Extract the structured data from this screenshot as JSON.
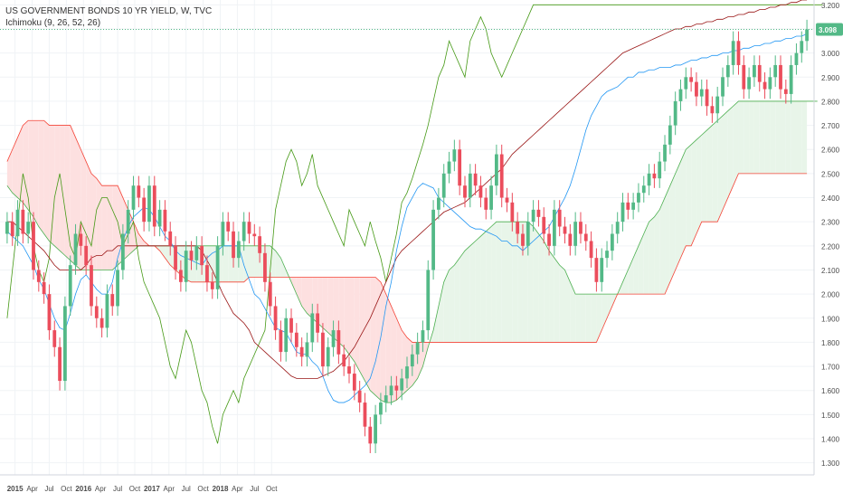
{
  "legend": {
    "title": "US GOVERNMENT BONDS 10 YR YIELD, W, TVC",
    "indicator": "Ichimoku (9, 26, 52, 26)"
  },
  "colors": {
    "up": "#53b987",
    "down": "#eb4d5c",
    "tenkan": "#2196f3",
    "kijun": "#991515",
    "chikou": "#459915",
    "span_a": "#4caf50",
    "span_b": "#f44336",
    "cloud_up_fill": "#e8f5e9",
    "cloud_down_fill": "#fde0e0",
    "price_line": "#53b987"
  },
  "chart_data": {
    "type": "candlestick",
    "ylim": [
      1.25,
      3.22
    ],
    "y_ticks": [
      "1.300",
      "1.400",
      "1.500",
      "1.600",
      "1.700",
      "1.800",
      "1.900",
      "2.000",
      "2.100",
      "2.200",
      "2.300",
      "2.400",
      "2.500",
      "2.600",
      "2.700",
      "2.800",
      "2.900",
      "3.000",
      "3.100",
      "3.200"
    ],
    "x_ticks": [
      "2015",
      "Apr",
      "Jul",
      "Oct",
      "2016",
      "Apr",
      "Jul",
      "Oct",
      "2017",
      "Apr",
      "Jul",
      "Oct",
      "2018",
      "Apr",
      "Jul",
      "Oct"
    ],
    "last_price_label": "3.098",
    "last_price": 3.098,
    "close": [
      2.3,
      2.24,
      2.35,
      2.25,
      2.3,
      2.1,
      2.05,
      2.0,
      1.85,
      1.78,
      1.64,
      1.95,
      2.12,
      2.25,
      2.2,
      2.12,
      1.95,
      1.9,
      1.86,
      2.0,
      1.95,
      2.1,
      2.25,
      2.35,
      2.45,
      2.4,
      2.3,
      2.45,
      2.28,
      2.35,
      2.26,
      2.2,
      2.1,
      2.05,
      2.18,
      2.14,
      2.2,
      2.12,
      2.05,
      2.02,
      2.2,
      2.3,
      2.26,
      2.15,
      2.22,
      2.3,
      2.25,
      2.24,
      2.17,
      2.05,
      1.95,
      1.85,
      1.76,
      1.9,
      1.84,
      1.78,
      1.74,
      1.8,
      1.92,
      1.84,
      1.7,
      1.78,
      1.85,
      1.75,
      1.7,
      1.67,
      1.6,
      1.55,
      1.45,
      1.38,
      1.5,
      1.55,
      1.58,
      1.62,
      1.6,
      1.65,
      1.7,
      1.75,
      1.8,
      1.85,
      2.1,
      2.35,
      2.4,
      2.5,
      2.55,
      2.6,
      2.45,
      2.4,
      2.5,
      2.45,
      2.4,
      2.35,
      2.45,
      2.58,
      2.4,
      2.38,
      2.3,
      2.25,
      2.2,
      2.3,
      2.35,
      2.32,
      2.25,
      2.2,
      2.35,
      2.28,
      2.25,
      2.2,
      2.3,
      2.25,
      2.22,
      2.15,
      2.05,
      2.15,
      2.18,
      2.25,
      2.3,
      2.38,
      2.35,
      2.38,
      2.42,
      2.45,
      2.5,
      2.48,
      2.55,
      2.62,
      2.7,
      2.8,
      2.85,
      2.9,
      2.88,
      2.82,
      2.85,
      2.78,
      2.75,
      2.82,
      2.9,
      2.95,
      3.05,
      2.95,
      2.85,
      2.9,
      2.95,
      2.88,
      2.85,
      2.9,
      2.95,
      2.85,
      2.83,
      2.95,
      3.0,
      3.05,
      3.098
    ],
    "tenkan": [
      2.26,
      2.24,
      2.22,
      2.2,
      2.16,
      2.12,
      2.06,
      2.02,
      1.96,
      1.9,
      1.86,
      1.85,
      1.92,
      2.0,
      2.06,
      2.08,
      2.05,
      2.02,
      2.0,
      2.0,
      2.05,
      2.15,
      2.22,
      2.28,
      2.32,
      2.34,
      2.36,
      2.35,
      2.32,
      2.28,
      2.24,
      2.22,
      2.18,
      2.16,
      2.15,
      2.14,
      2.13,
      2.12,
      2.15,
      2.17,
      2.18,
      2.2,
      2.2,
      2.2,
      2.2,
      2.12,
      2.06,
      2.0,
      1.98,
      1.94,
      1.9,
      1.86,
      1.85,
      1.84,
      1.8,
      1.76,
      1.75,
      1.75,
      1.72,
      1.7,
      1.66,
      1.6,
      1.56,
      1.55,
      1.55,
      1.56,
      1.58,
      1.6,
      1.62,
      1.65,
      1.72,
      1.82,
      1.95,
      2.05,
      2.18,
      2.28,
      2.36,
      2.4,
      2.44,
      2.46,
      2.45,
      2.44,
      2.4,
      2.38,
      2.36,
      2.34,
      2.32,
      2.3,
      2.28,
      2.27,
      2.27,
      2.26,
      2.25,
      2.24,
      2.22,
      2.22,
      2.2,
      2.2,
      2.18,
      2.2,
      2.22,
      2.24,
      2.26,
      2.28,
      2.32,
      2.36,
      2.4,
      2.45,
      2.52,
      2.6,
      2.68,
      2.74,
      2.78,
      2.82,
      2.84,
      2.85,
      2.86,
      2.88,
      2.9,
      2.9,
      2.92,
      2.92,
      2.93,
      2.93,
      2.94,
      2.94,
      2.94,
      2.95,
      2.95,
      2.96,
      2.97,
      2.97,
      2.98,
      2.98,
      2.99,
      2.99,
      3.0,
      3.0,
      3.01,
      3.01,
      3.02,
      3.02,
      3.03,
      3.03,
      3.04,
      3.04,
      3.05,
      3.05,
      3.06,
      3.06,
      3.07,
      3.07,
      3.08
    ],
    "kijun": [
      2.3,
      2.3,
      2.28,
      2.26,
      2.24,
      2.22,
      2.2,
      2.18,
      2.15,
      2.12,
      2.1,
      2.1,
      2.1,
      2.1,
      2.1,
      2.12,
      2.15,
      2.16,
      2.16,
      2.18,
      2.18,
      2.2,
      2.2,
      2.2,
      2.2,
      2.2,
      2.2,
      2.2,
      2.2,
      2.2,
      2.2,
      2.2,
      2.2,
      2.2,
      2.2,
      2.2,
      2.2,
      2.18,
      2.14,
      2.1,
      2.05,
      2.0,
      1.96,
      1.92,
      1.9,
      1.88,
      1.85,
      1.8,
      1.78,
      1.76,
      1.74,
      1.72,
      1.7,
      1.68,
      1.66,
      1.65,
      1.65,
      1.65,
      1.65,
      1.65,
      1.66,
      1.67,
      1.68,
      1.7,
      1.72,
      1.75,
      1.78,
      1.82,
      1.86,
      1.9,
      1.95,
      2.0,
      2.05,
      2.1,
      2.15,
      2.18,
      2.2,
      2.22,
      2.24,
      2.26,
      2.28,
      2.3,
      2.32,
      2.34,
      2.35,
      2.36,
      2.37,
      2.38,
      2.4,
      2.42,
      2.44,
      2.46,
      2.48,
      2.5,
      2.52,
      2.55,
      2.58,
      2.6,
      2.62,
      2.64,
      2.66,
      2.68,
      2.7,
      2.72,
      2.74,
      2.76,
      2.78,
      2.8,
      2.82,
      2.84,
      2.86,
      2.88,
      2.9,
      2.92,
      2.94,
      2.96,
      2.98,
      3.0,
      3.01,
      3.02,
      3.03,
      3.04,
      3.05,
      3.06,
      3.07,
      3.08,
      3.09,
      3.1,
      3.1,
      3.11,
      3.11,
      3.12,
      3.12,
      3.13,
      3.13,
      3.14,
      3.14,
      3.15,
      3.15,
      3.16,
      3.16,
      3.17,
      3.17,
      3.18,
      3.18,
      3.19,
      3.19,
      3.2,
      3.2,
      3.21,
      3.21,
      3.22,
      3.22
    ],
    "span_a": [
      2.45,
      2.42,
      2.4,
      2.38,
      2.35,
      2.32,
      2.28,
      2.25,
      2.22,
      2.2,
      2.18,
      2.16,
      2.14,
      2.12,
      2.1,
      2.1,
      2.1,
      2.1,
      2.1,
      2.1,
      2.1,
      2.12,
      2.14,
      2.16,
      2.18,
      2.2,
      2.2,
      2.2,
      2.2,
      2.2,
      2.2,
      2.2,
      2.2,
      2.2,
      2.2,
      2.2,
      2.2,
      2.2,
      2.2,
      2.2,
      2.2,
      2.2,
      2.2,
      2.2,
      2.2,
      2.2,
      2.2,
      2.2,
      2.2,
      2.2,
      2.2,
      2.18,
      2.15,
      2.1,
      2.05,
      2.0,
      1.95,
      1.92,
      1.9,
      1.88,
      1.86,
      1.84,
      1.82,
      1.8,
      1.78,
      1.75,
      1.72,
      1.68,
      1.64,
      1.6,
      1.58,
      1.56,
      1.55,
      1.55,
      1.56,
      1.58,
      1.6,
      1.62,
      1.65,
      1.7,
      1.78,
      1.85,
      1.95,
      2.05,
      2.1,
      2.12,
      2.15,
      2.18,
      2.2,
      2.22,
      2.24,
      2.26,
      2.28,
      2.3,
      2.3,
      2.3,
      2.3,
      2.3,
      2.3,
      2.3,
      2.28,
      2.25,
      2.22,
      2.18,
      2.15,
      2.12,
      2.1,
      2.05,
      2.0,
      2.0,
      2.0,
      2.0,
      2.0,
      2.0,
      2.0,
      2.0,
      2.0,
      2.05,
      2.1,
      2.15,
      2.2,
      2.25,
      2.3,
      2.32,
      2.35,
      2.4,
      2.45,
      2.5,
      2.55,
      2.6,
      2.62,
      2.64,
      2.66,
      2.68,
      2.7,
      2.72,
      2.74,
      2.76,
      2.78,
      2.8,
      2.8,
      2.8,
      2.8,
      2.8,
      2.8,
      2.8,
      2.8,
      2.8,
      2.8,
      2.8,
      2.8,
      2.8,
      2.8,
      2.8,
      2.8
    ],
    "span_b": [
      2.55,
      2.6,
      2.65,
      2.7,
      2.72,
      2.72,
      2.72,
      2.72,
      2.7,
      2.7,
      2.7,
      2.7,
      2.7,
      2.65,
      2.6,
      2.55,
      2.5,
      2.48,
      2.45,
      2.45,
      2.45,
      2.45,
      2.4,
      2.35,
      2.3,
      2.25,
      2.22,
      2.2,
      2.2,
      2.18,
      2.15,
      2.12,
      2.1,
      2.08,
      2.06,
      2.05,
      2.05,
      2.05,
      2.05,
      2.05,
      2.05,
      2.05,
      2.05,
      2.05,
      2.05,
      2.05,
      2.07,
      2.07,
      2.07,
      2.07,
      2.07,
      2.07,
      2.07,
      2.07,
      2.07,
      2.07,
      2.07,
      2.07,
      2.07,
      2.07,
      2.07,
      2.07,
      2.07,
      2.07,
      2.07,
      2.07,
      2.07,
      2.07,
      2.07,
      2.07,
      2.07,
      2.05,
      2.0,
      1.95,
      1.9,
      1.85,
      1.82,
      1.8,
      1.8,
      1.8,
      1.8,
      1.8,
      1.8,
      1.8,
      1.8,
      1.8,
      1.8,
      1.8,
      1.8,
      1.8,
      1.8,
      1.8,
      1.8,
      1.8,
      1.8,
      1.8,
      1.8,
      1.8,
      1.8,
      1.8,
      1.8,
      1.8,
      1.8,
      1.8,
      1.8,
      1.8,
      1.8,
      1.8,
      1.8,
      1.8,
      1.8,
      1.8,
      1.8,
      1.85,
      1.9,
      1.95,
      2.0,
      2.0,
      2.0,
      2.0,
      2.0,
      2.0,
      2.0,
      2.0,
      2.0,
      2.0,
      2.05,
      2.1,
      2.15,
      2.2,
      2.2,
      2.25,
      2.3,
      2.3,
      2.3,
      2.3,
      2.35,
      2.4,
      2.45,
      2.5,
      2.5,
      2.5,
      2.5,
      2.5,
      2.5,
      2.5,
      2.5,
      2.5,
      2.5,
      2.5,
      2.5,
      2.5,
      2.5
    ],
    "chikou": [
      1.9,
      2.1,
      2.3,
      2.5,
      2.4,
      2.2,
      2.1,
      2.05,
      2.15,
      2.4,
      2.5,
      2.35,
      2.2,
      2.15,
      2.3,
      2.25,
      2.2,
      2.35,
      2.4,
      2.4,
      2.35,
      2.3,
      2.2,
      2.25,
      2.3,
      2.15,
      2.05,
      2.0,
      1.95,
      1.9,
      1.8,
      1.7,
      1.65,
      1.75,
      1.85,
      1.8,
      1.7,
      1.6,
      1.55,
      1.45,
      1.38,
      1.5,
      1.55,
      1.6,
      1.55,
      1.65,
      1.7,
      1.75,
      1.8,
      1.85,
      2.1,
      2.35,
      2.45,
      2.55,
      2.6,
      2.55,
      2.45,
      2.5,
      2.58,
      2.45,
      2.4,
      2.35,
      2.3,
      2.25,
      2.2,
      2.35,
      2.3,
      2.25,
      2.2,
      2.3,
      2.22,
      2.15,
      2.05,
      2.15,
      2.25,
      2.38,
      2.42,
      2.48,
      2.55,
      2.62,
      2.7,
      2.8,
      2.9,
      2.95,
      3.05,
      3.0,
      2.95,
      2.9,
      3.05,
      3.1,
      3.15,
      3.1,
      3.0,
      2.95,
      2.9,
      2.95,
      3.0,
      3.05,
      3.1,
      3.15,
      3.2,
      3.2,
      3.2,
      3.2,
      3.2,
      3.2,
      3.2,
      3.2,
      3.2,
      3.2,
      3.2,
      3.2,
      3.2,
      3.2,
      3.2,
      3.2,
      3.2,
      3.2,
      3.2,
      3.2,
      3.2,
      3.2,
      3.2,
      3.2,
      3.2,
      3.2,
      3.2,
      3.2,
      3.2,
      3.2,
      3.2,
      3.2,
      3.2,
      3.2,
      3.2,
      3.2,
      3.2,
      3.2,
      3.2,
      3.2,
      3.2,
      3.2,
      3.2,
      3.2,
      3.2,
      3.2,
      3.2,
      3.2,
      3.2,
      3.2,
      3.2,
      3.2,
      3.2,
      3.2,
      3.2,
      3.2
    ]
  }
}
